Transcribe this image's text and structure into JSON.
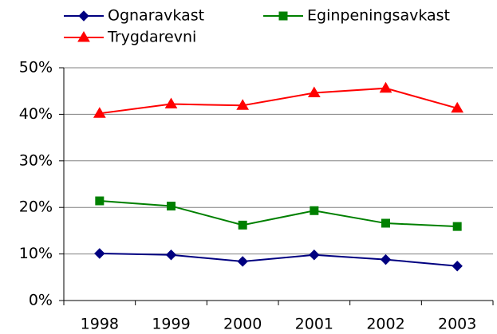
{
  "chart_data": {
    "type": "line",
    "categories": [
      "1998",
      "1999",
      "2000",
      "2001",
      "2002",
      "2003"
    ],
    "series": [
      {
        "name": "Ognaravkast",
        "color": "#000080",
        "marker": "diamond",
        "values": [
          10.1,
          9.8,
          8.4,
          9.8,
          8.8,
          7.4
        ]
      },
      {
        "name": "Eginpeningsavkast",
        "color": "#008000",
        "marker": "square",
        "values": [
          21.4,
          20.3,
          16.2,
          19.3,
          16.6,
          15.9
        ]
      },
      {
        "name": "Trygdarevni",
        "color": "#ff0000",
        "marker": "triangle",
        "values": [
          40.2,
          42.2,
          41.9,
          44.6,
          45.6,
          41.3
        ]
      }
    ],
    "ylim": [
      0,
      50
    ],
    "yticks": [
      {
        "value": 0,
        "label": "0%"
      },
      {
        "value": 10,
        "label": "10%"
      },
      {
        "value": 20,
        "label": "20%"
      },
      {
        "value": 30,
        "label": "30%"
      },
      {
        "value": 40,
        "label": "40%"
      },
      {
        "value": 50,
        "label": "50%"
      }
    ],
    "grid": true,
    "legend": "top"
  }
}
